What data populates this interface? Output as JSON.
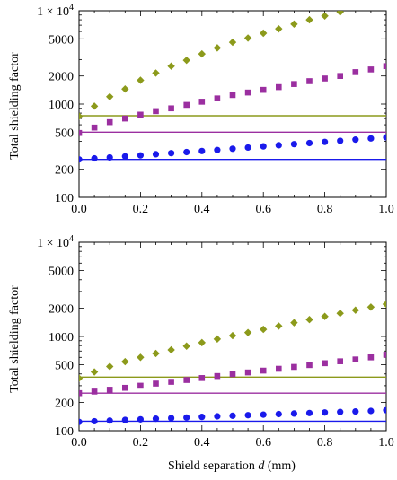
{
  "figure": {
    "shared_xlabel_text": "Shield separation ",
    "shared_xlabel_var": "d",
    "shared_xlabel_unit": " (mm)"
  },
  "chart_data": [
    {
      "type": "scatter",
      "panel": "top",
      "ylabel": "Total shielding factor",
      "xlabel": "",
      "y_scale": "log",
      "xlim": [
        0,
        1
      ],
      "ylim": [
        100,
        10000
      ],
      "x_ticks": [
        0.0,
        0.2,
        0.4,
        0.6,
        0.8,
        1.0
      ],
      "x_tick_labels": [
        "0.0",
        "0.2",
        "0.4",
        "0.6",
        "0.8",
        "1.0"
      ],
      "y_ticks": [
        100,
        200,
        500,
        1000,
        2000,
        5000,
        10000
      ],
      "y_tick_labels": [
        "100",
        "200",
        "500",
        "1000",
        "2000",
        "5000",
        "1 × 10"
      ],
      "y_tick_top_exponent": "4",
      "grid": false,
      "series": [
        {
          "marker": "diamond",
          "color": "#8c9a1b",
          "x": [
            0,
            0.05,
            0.1,
            0.15,
            0.2,
            0.25,
            0.3,
            0.35,
            0.4,
            0.45,
            0.5,
            0.55,
            0.6,
            0.65,
            0.7,
            0.75,
            0.8,
            0.85
          ],
          "y": [
            740,
            950,
            1200,
            1450,
            1800,
            2150,
            2550,
            2950,
            3450,
            4000,
            4600,
            5100,
            5750,
            6400,
            7200,
            8000,
            8800,
            9700
          ]
        },
        {
          "marker": "square",
          "color": "#9b2fa0",
          "x": [
            0,
            0.05,
            0.1,
            0.15,
            0.2,
            0.25,
            0.3,
            0.35,
            0.4,
            0.45,
            0.5,
            0.55,
            0.6,
            0.65,
            0.7,
            0.75,
            0.8,
            0.85,
            0.9,
            0.95,
            1.0
          ],
          "y": [
            490,
            560,
            640,
            700,
            770,
            840,
            900,
            980,
            1060,
            1150,
            1250,
            1330,
            1420,
            1520,
            1640,
            1760,
            1880,
            2000,
            2200,
            2350,
            2550
          ]
        },
        {
          "marker": "circle",
          "color": "#1a1aeb",
          "x": [
            0,
            0.05,
            0.1,
            0.15,
            0.2,
            0.25,
            0.3,
            0.35,
            0.4,
            0.45,
            0.5,
            0.55,
            0.6,
            0.65,
            0.7,
            0.75,
            0.8,
            0.85,
            0.9,
            0.95,
            1.0
          ],
          "y": [
            255,
            262,
            268,
            275,
            282,
            290,
            298,
            306,
            314,
            322,
            332,
            342,
            352,
            362,
            372,
            382,
            393,
            404,
            416,
            428,
            440
          ]
        }
      ],
      "reference_lines": [
        {
          "color": "#8c9a1b",
          "y": 750
        },
        {
          "color": "#9b2fa0",
          "y": 500
        },
        {
          "color": "#1a1aeb",
          "y": 255
        }
      ]
    },
    {
      "type": "scatter",
      "panel": "bottom",
      "ylabel": "Total shielding factor",
      "xlabel": "Shield separation d (mm)",
      "y_scale": "log",
      "xlim": [
        0,
        1
      ],
      "ylim": [
        100,
        10000
      ],
      "x_ticks": [
        0.0,
        0.2,
        0.4,
        0.6,
        0.8,
        1.0
      ],
      "x_tick_labels": [
        "0.0",
        "0.2",
        "0.4",
        "0.6",
        "0.8",
        "1.0"
      ],
      "y_ticks": [
        100,
        200,
        500,
        1000,
        2000,
        5000,
        10000
      ],
      "y_tick_labels": [
        "100",
        "200",
        "500",
        "1000",
        "2000",
        "5000",
        "1 × 10"
      ],
      "y_tick_top_exponent": "4",
      "grid": false,
      "series": [
        {
          "marker": "diamond",
          "color": "#8c9a1b",
          "x": [
            0,
            0.05,
            0.1,
            0.15,
            0.2,
            0.25,
            0.3,
            0.35,
            0.4,
            0.45,
            0.5,
            0.55,
            0.6,
            0.65,
            0.7,
            0.75,
            0.8,
            0.85,
            0.9,
            0.95,
            1.0
          ],
          "y": [
            360,
            420,
            480,
            540,
            600,
            660,
            720,
            790,
            860,
            940,
            1020,
            1100,
            1190,
            1290,
            1400,
            1510,
            1630,
            1760,
            1900,
            2050,
            2200
          ]
        },
        {
          "marker": "square",
          "color": "#9b2fa0",
          "x": [
            0,
            0.05,
            0.1,
            0.15,
            0.2,
            0.25,
            0.3,
            0.35,
            0.4,
            0.45,
            0.5,
            0.55,
            0.6,
            0.65,
            0.7,
            0.75,
            0.8,
            0.85,
            0.9,
            0.95,
            1.0
          ],
          "y": [
            250,
            260,
            272,
            285,
            300,
            316,
            330,
            345,
            362,
            380,
            398,
            415,
            434,
            454,
            475,
            497,
            520,
            545,
            570,
            600,
            640
          ]
        },
        {
          "marker": "circle",
          "color": "#1a1aeb",
          "x": [
            0,
            0.05,
            0.1,
            0.15,
            0.2,
            0.25,
            0.3,
            0.35,
            0.4,
            0.45,
            0.5,
            0.55,
            0.6,
            0.65,
            0.7,
            0.75,
            0.8,
            0.85,
            0.9,
            0.95,
            1.0
          ],
          "y": [
            124,
            126,
            128,
            130,
            132,
            134,
            136,
            138,
            140,
            142,
            144,
            146,
            148,
            150,
            152,
            154,
            156,
            158,
            160,
            162,
            165
          ]
        }
      ],
      "reference_lines": [
        {
          "color": "#8c9a1b",
          "y": 370
        },
        {
          "color": "#9b2fa0",
          "y": 250
        },
        {
          "color": "#1a1aeb",
          "y": 126
        }
      ]
    }
  ]
}
